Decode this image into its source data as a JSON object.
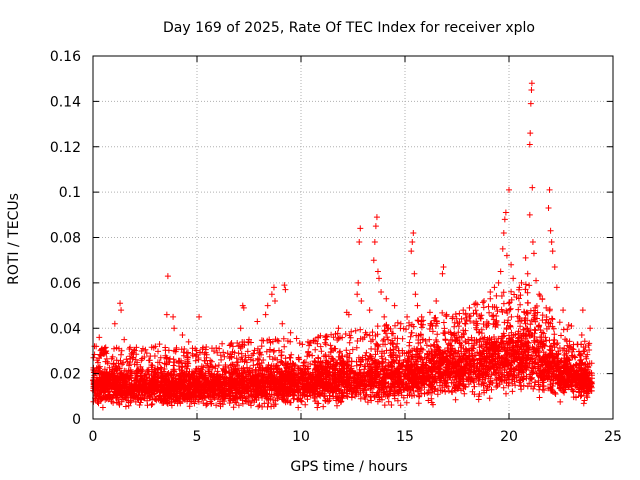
{
  "chart_data": {
    "type": "scatter",
    "title": "Day 169 of 2025, Rate Of TEC Index for receiver xplo",
    "xlabel": "GPS time / hours",
    "ylabel": "ROTI / TECUs",
    "xlim": [
      0,
      25
    ],
    "ylim": [
      0,
      0.16
    ],
    "xticks": [
      0,
      5,
      10,
      15,
      20,
      25
    ],
    "xtick_labels": [
      "0",
      "5",
      "10",
      "15",
      "20",
      "25"
    ],
    "yticks": [
      0,
      0.02,
      0.04,
      0.06,
      0.08,
      0.1,
      0.12,
      0.14,
      0.16
    ],
    "ytick_labels": [
      "0",
      "0.02",
      "0.04",
      "0.06",
      "0.08",
      "0.1",
      "0.12",
      "0.14",
      "0.16"
    ],
    "grid": true,
    "marker": "plus",
    "series_color": "#ff0000",
    "baseline_profile": [
      {
        "t": 0.0,
        "median": 0.015,
        "spread": 0.008
      },
      {
        "t": 2.5,
        "median": 0.014,
        "spread": 0.008
      },
      {
        "t": 5.0,
        "median": 0.014,
        "spread": 0.008
      },
      {
        "t": 7.5,
        "median": 0.015,
        "spread": 0.009
      },
      {
        "t": 10.0,
        "median": 0.016,
        "spread": 0.009
      },
      {
        "t": 12.5,
        "median": 0.017,
        "spread": 0.01
      },
      {
        "t": 15.0,
        "median": 0.019,
        "spread": 0.011
      },
      {
        "t": 17.5,
        "median": 0.022,
        "spread": 0.012
      },
      {
        "t": 20.0,
        "median": 0.026,
        "spread": 0.014
      },
      {
        "t": 21.0,
        "median": 0.028,
        "spread": 0.015
      },
      {
        "t": 22.0,
        "median": 0.022,
        "spread": 0.012
      },
      {
        "t": 24.0,
        "median": 0.016,
        "spread": 0.008
      }
    ],
    "outliers": [
      {
        "x": 0.15,
        "y": 0.032
      },
      {
        "x": 0.3,
        "y": 0.036
      },
      {
        "x": 0.5,
        "y": 0.029
      },
      {
        "x": 1.05,
        "y": 0.042
      },
      {
        "x": 1.3,
        "y": 0.051
      },
      {
        "x": 1.35,
        "y": 0.048
      },
      {
        "x": 1.5,
        "y": 0.035
      },
      {
        "x": 2.4,
        "y": 0.031
      },
      {
        "x": 3.0,
        "y": 0.032
      },
      {
        "x": 3.2,
        "y": 0.033
      },
      {
        "x": 3.55,
        "y": 0.046
      },
      {
        "x": 3.6,
        "y": 0.063
      },
      {
        "x": 3.85,
        "y": 0.045
      },
      {
        "x": 3.9,
        "y": 0.04
      },
      {
        "x": 4.3,
        "y": 0.037
      },
      {
        "x": 4.6,
        "y": 0.034
      },
      {
        "x": 5.1,
        "y": 0.045
      },
      {
        "x": 7.1,
        "y": 0.04
      },
      {
        "x": 7.2,
        "y": 0.05
      },
      {
        "x": 7.25,
        "y": 0.049
      },
      {
        "x": 7.5,
        "y": 0.035
      },
      {
        "x": 7.9,
        "y": 0.043
      },
      {
        "x": 8.3,
        "y": 0.046
      },
      {
        "x": 8.4,
        "y": 0.05
      },
      {
        "x": 8.6,
        "y": 0.055
      },
      {
        "x": 8.7,
        "y": 0.058
      },
      {
        "x": 8.75,
        "y": 0.052
      },
      {
        "x": 9.1,
        "y": 0.042
      },
      {
        "x": 9.2,
        "y": 0.059
      },
      {
        "x": 9.25,
        "y": 0.057
      },
      {
        "x": 9.5,
        "y": 0.038
      },
      {
        "x": 11.2,
        "y": 0.035
      },
      {
        "x": 11.8,
        "y": 0.04
      },
      {
        "x": 12.2,
        "y": 0.047
      },
      {
        "x": 12.3,
        "y": 0.046
      },
      {
        "x": 12.7,
        "y": 0.055
      },
      {
        "x": 12.75,
        "y": 0.06
      },
      {
        "x": 12.8,
        "y": 0.078
      },
      {
        "x": 12.85,
        "y": 0.084
      },
      {
        "x": 12.9,
        "y": 0.052
      },
      {
        "x": 13.1,
        "y": 0.038
      },
      {
        "x": 13.3,
        "y": 0.048
      },
      {
        "x": 13.5,
        "y": 0.07
      },
      {
        "x": 13.55,
        "y": 0.078
      },
      {
        "x": 13.6,
        "y": 0.085
      },
      {
        "x": 13.65,
        "y": 0.089
      },
      {
        "x": 13.7,
        "y": 0.065
      },
      {
        "x": 13.75,
        "y": 0.062
      },
      {
        "x": 13.85,
        "y": 0.056
      },
      {
        "x": 14.0,
        "y": 0.045
      },
      {
        "x": 14.1,
        "y": 0.053
      },
      {
        "x": 14.2,
        "y": 0.04
      },
      {
        "x": 14.5,
        "y": 0.05
      },
      {
        "x": 14.8,
        "y": 0.042
      },
      {
        "x": 15.1,
        "y": 0.045
      },
      {
        "x": 15.3,
        "y": 0.074
      },
      {
        "x": 15.35,
        "y": 0.078
      },
      {
        "x": 15.4,
        "y": 0.082
      },
      {
        "x": 15.45,
        "y": 0.064
      },
      {
        "x": 15.5,
        "y": 0.055
      },
      {
        "x": 15.6,
        "y": 0.05
      },
      {
        "x": 15.8,
        "y": 0.045
      },
      {
        "x": 16.2,
        "y": 0.047
      },
      {
        "x": 16.5,
        "y": 0.052
      },
      {
        "x": 16.8,
        "y": 0.064
      },
      {
        "x": 16.85,
        "y": 0.067
      },
      {
        "x": 17.0,
        "y": 0.046
      },
      {
        "x": 17.3,
        "y": 0.045
      },
      {
        "x": 17.8,
        "y": 0.048
      },
      {
        "x": 18.1,
        "y": 0.049
      },
      {
        "x": 18.4,
        "y": 0.051
      },
      {
        "x": 18.8,
        "y": 0.052
      },
      {
        "x": 19.1,
        "y": 0.056
      },
      {
        "x": 19.3,
        "y": 0.058
      },
      {
        "x": 19.5,
        "y": 0.06
      },
      {
        "x": 19.6,
        "y": 0.065
      },
      {
        "x": 19.7,
        "y": 0.075
      },
      {
        "x": 19.75,
        "y": 0.082
      },
      {
        "x": 19.8,
        "y": 0.088
      },
      {
        "x": 19.85,
        "y": 0.091
      },
      {
        "x": 19.9,
        "y": 0.072
      },
      {
        "x": 20.0,
        "y": 0.101
      },
      {
        "x": 20.1,
        "y": 0.068
      },
      {
        "x": 20.2,
        "y": 0.062
      },
      {
        "x": 20.5,
        "y": 0.058
      },
      {
        "x": 20.6,
        "y": 0.06
      },
      {
        "x": 20.8,
        "y": 0.071
      },
      {
        "x": 20.9,
        "y": 0.064
      },
      {
        "x": 21.0,
        "y": 0.121
      },
      {
        "x": 21.02,
        "y": 0.126
      },
      {
        "x": 21.05,
        "y": 0.139
      },
      {
        "x": 21.08,
        "y": 0.145
      },
      {
        "x": 21.1,
        "y": 0.148
      },
      {
        "x": 21.12,
        "y": 0.102
      },
      {
        "x": 21.0,
        "y": 0.09
      },
      {
        "x": 21.15,
        "y": 0.078
      },
      {
        "x": 21.2,
        "y": 0.073
      },
      {
        "x": 21.3,
        "y": 0.061
      },
      {
        "x": 21.45,
        "y": 0.055
      },
      {
        "x": 21.9,
        "y": 0.093
      },
      {
        "x": 21.95,
        "y": 0.101
      },
      {
        "x": 22.0,
        "y": 0.083
      },
      {
        "x": 22.05,
        "y": 0.078
      },
      {
        "x": 22.1,
        "y": 0.074
      },
      {
        "x": 22.2,
        "y": 0.067
      },
      {
        "x": 22.3,
        "y": 0.058
      },
      {
        "x": 22.6,
        "y": 0.048
      },
      {
        "x": 23.0,
        "y": 0.041
      },
      {
        "x": 23.5,
        "y": 0.037
      },
      {
        "x": 23.55,
        "y": 0.048
      },
      {
        "x": 23.9,
        "y": 0.04
      }
    ]
  }
}
